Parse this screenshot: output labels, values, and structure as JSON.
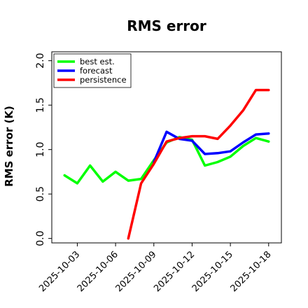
{
  "chart_data": {
    "type": "line",
    "title": "RMS error",
    "xlabel": "",
    "ylabel": "RMS error (K)",
    "x_dates": [
      "2025-10-02",
      "2025-10-03",
      "2025-10-04",
      "2025-10-05",
      "2025-10-06",
      "2025-10-07",
      "2025-10-08",
      "2025-10-09",
      "2025-10-10",
      "2025-10-11",
      "2025-10-12",
      "2025-10-13",
      "2025-10-14",
      "2025-10-15",
      "2025-10-16",
      "2025-10-17",
      "2025-10-18"
    ],
    "xlim": [
      "2025-10-01",
      "2025-10-19"
    ],
    "xticks": [
      {
        "date": "2025-10-03",
        "label": "2025-10-03",
        "color": "#000000"
      },
      {
        "date": "2025-10-06",
        "label": "2025-10-06",
        "color": "#000000"
      },
      {
        "date": "2025-10-09",
        "label": "2025-10-09",
        "color": "#228B22"
      },
      {
        "date": "2025-10-12",
        "label": "2025-10-12",
        "color": "#000000"
      },
      {
        "date": "2025-10-15",
        "label": "2025-10-15",
        "color": "#000000"
      },
      {
        "date": "2025-10-18",
        "label": "2025-10-18",
        "color": "#000000"
      }
    ],
    "ylim": [
      -0.05,
      2.1
    ],
    "yticks": [
      {
        "value": 0.0,
        "label": "0.0"
      },
      {
        "value": 0.5,
        "label": "0.5"
      },
      {
        "value": 1.0,
        "label": "1.0"
      },
      {
        "value": 1.5,
        "label": "1.5"
      },
      {
        "value": 2.0,
        "label": "2.0"
      }
    ],
    "grid": false,
    "legend_position": "top-left",
    "series": [
      {
        "name": "best est.",
        "color": "#00ff00",
        "points": [
          [
            "2025-10-02",
            0.71
          ],
          [
            "2025-10-03",
            0.62
          ],
          [
            "2025-10-04",
            0.82
          ],
          [
            "2025-10-05",
            0.64
          ],
          [
            "2025-10-06",
            0.75
          ],
          [
            "2025-10-07",
            0.65
          ],
          [
            "2025-10-08",
            0.67
          ],
          [
            "2025-10-09",
            0.88
          ],
          [
            "2025-10-10",
            1.08
          ],
          [
            "2025-10-11",
            1.14
          ],
          [
            "2025-10-12",
            1.11
          ],
          [
            "2025-10-13",
            0.82
          ],
          [
            "2025-10-14",
            0.86
          ],
          [
            "2025-10-15",
            0.92
          ],
          [
            "2025-10-16",
            1.04
          ],
          [
            "2025-10-17",
            1.13
          ],
          [
            "2025-10-18",
            1.09
          ]
        ]
      },
      {
        "name": "forecast",
        "color": "#0000ff",
        "points": [
          [
            "2025-10-09",
            0.86
          ],
          [
            "2025-10-10",
            1.2
          ],
          [
            "2025-10-11",
            1.12
          ],
          [
            "2025-10-12",
            1.1
          ],
          [
            "2025-10-13",
            0.95
          ],
          [
            "2025-10-14",
            0.96
          ],
          [
            "2025-10-15",
            0.98
          ],
          [
            "2025-10-16",
            1.08
          ],
          [
            "2025-10-17",
            1.17
          ],
          [
            "2025-10-18",
            1.18
          ]
        ]
      },
      {
        "name": "persistence",
        "color": "#ff0000",
        "points": [
          [
            "2025-10-07",
            0.0
          ],
          [
            "2025-10-08",
            0.62
          ],
          [
            "2025-10-09",
            0.84
          ],
          [
            "2025-10-10",
            1.09
          ],
          [
            "2025-10-11",
            1.13
          ],
          [
            "2025-10-12",
            1.15
          ],
          [
            "2025-10-13",
            1.15
          ],
          [
            "2025-10-14",
            1.12
          ],
          [
            "2025-10-15",
            1.27
          ],
          [
            "2025-10-16",
            1.44
          ],
          [
            "2025-10-17",
            1.67
          ],
          [
            "2025-10-18",
            1.67
          ]
        ]
      }
    ]
  }
}
